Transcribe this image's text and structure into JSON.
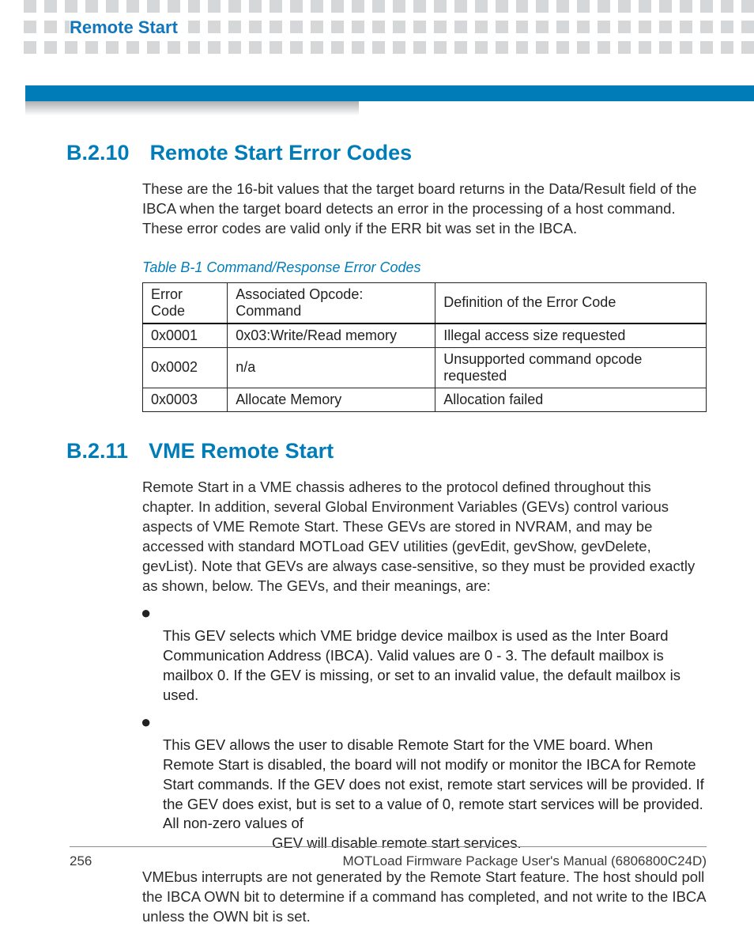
{
  "colors": {
    "accent": "#007db8",
    "header_square": "#d6d7d8",
    "text": "#2b2b2b",
    "rule": "#8a8c8e"
  },
  "header": {
    "running_title": "Remote Start"
  },
  "section1": {
    "number": "B.2.10",
    "title": "Remote Start Error Codes",
    "intro": "These are the 16-bit values that the target board returns in the Data/Result field of the IBCA when the target board detects an error in the processing of a host command. These error codes are valid only if the ERR bit was set in the IBCA."
  },
  "table": {
    "caption": "Table B-1 Command/Response Error Codes",
    "columns": [
      "Error Code",
      "Associated Opcode: Command",
      "Definition of the Error Code"
    ],
    "rows": [
      [
        "0x0001",
        "0x03:Write/Read memory",
        "Illegal access size requested"
      ],
      [
        "0x0002",
        "n/a",
        "Unsupported command opcode requested"
      ],
      [
        "0x0003",
        "Allocate Memory",
        "Allocation failed"
      ]
    ]
  },
  "section2": {
    "number": "B.2.11",
    "title": "VME Remote Start",
    "intro": "Remote Start in a VME chassis adheres to the protocol defined throughout this chapter. In addition, several Global Environment Variables (GEVs) control various aspects of VME Remote Start. These GEVs are stored in NVRAM, and may be accessed with standard MOTLoad GEV utilities (gevEdit, gevShow, gevDelete, gevList). Note that GEVs are always case-sensitive, so they must be provided exactly as shown, below. The GEVs, and their meanings, are:",
    "bullet1": "This GEV selects which VME bridge device mailbox is used as the Inter Board Communication Address (IBCA). Valid values are 0 - 3. The default mailbox is mailbox 0. If the GEV is missing, or set to an invalid value, the default mailbox is used.",
    "bullet2": "This GEV allows the user to disable Remote Start for the VME board. When Remote Start is disabled, the board will not modify or monitor the IBCA for Remote Start commands. If the GEV does not exist, remote start services will be provided. If the GEV does exist, but is set to a value of 0, remote start services will be provided. All non-zero values of",
    "bullet2_tail": "GEV will disable remote start services.",
    "closing": "VMEbus interrupts are not generated by the Remote Start feature. The host should poll the IBCA OWN bit to determine if a command has completed, and not write to the IBCA unless the OWN bit is set."
  },
  "footer": {
    "page": "256",
    "doc": "MOTLoad Firmware Package User's Manual (6806800C24D)"
  }
}
